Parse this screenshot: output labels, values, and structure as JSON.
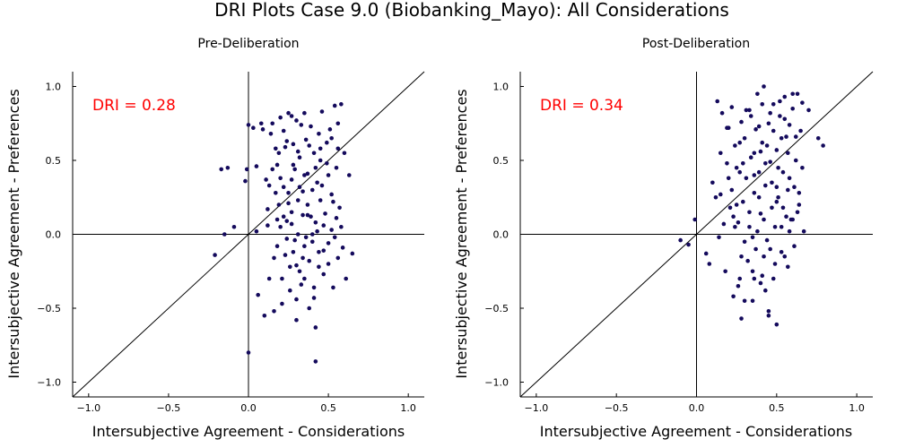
{
  "figure": {
    "title": "DRI Plots Case 9.0 (Biobanking_Mayo): All Considerations"
  },
  "chart_data": [
    {
      "type": "scatter",
      "title": "Pre-Deliberation",
      "xlabel": "Intersubjective Agreement - Considerations",
      "ylabel": "Intersubjective Agreement - Preferences",
      "xlim": [
        -1.1,
        1.1
      ],
      "ylim": [
        -1.1,
        1.1
      ],
      "xticks": [
        "−1.0",
        "−0.5",
        "0.0",
        "0.5",
        "1.0"
      ],
      "yticks": [
        "−1.0",
        "−0.5",
        "0.0",
        "0.5",
        "1.0"
      ],
      "grid": false,
      "annotation": "DRI = 0.28",
      "annotation_color": "#ff0000",
      "marker_color": "#140a5c",
      "reference_lines": [
        "x = 0",
        "y = 0",
        "y = x"
      ],
      "points": [
        [
          -0.21,
          -0.14
        ],
        [
          -0.17,
          0.44
        ],
        [
          -0.15,
          0.0
        ],
        [
          -0.13,
          0.45
        ],
        [
          -0.09,
          0.05
        ],
        [
          -0.02,
          0.36
        ],
        [
          -0.01,
          0.44
        ],
        [
          0.0,
          0.74
        ],
        [
          0.0,
          -0.8
        ],
        [
          0.03,
          0.72
        ],
        [
          0.05,
          0.46
        ],
        [
          0.05,
          0.02
        ],
        [
          0.06,
          -0.41
        ],
        [
          0.08,
          0.75
        ],
        [
          0.09,
          0.71
        ],
        [
          0.1,
          -0.55
        ],
        [
          0.11,
          0.37
        ],
        [
          0.12,
          0.17
        ],
        [
          0.13,
          -0.3
        ],
        [
          0.14,
          0.68
        ],
        [
          0.15,
          0.44
        ],
        [
          0.16,
          -0.52
        ],
        [
          0.17,
          0.28
        ],
        [
          0.18,
          -0.08
        ],
        [
          0.19,
          0.55
        ],
        [
          0.2,
          0.79
        ],
        [
          0.2,
          0.05
        ],
        [
          0.21,
          -0.3
        ],
        [
          0.22,
          0.32
        ],
        [
          0.22,
          0.12
        ],
        [
          0.23,
          0.59
        ],
        [
          0.24,
          -0.03
        ],
        [
          0.25,
          0.82
        ],
        [
          0.25,
          0.21
        ],
        [
          0.26,
          -0.22
        ],
        [
          0.27,
          0.37
        ],
        [
          0.27,
          0.07
        ],
        [
          0.28,
          0.61
        ],
        [
          0.28,
          -0.12
        ],
        [
          0.29,
          0.44
        ],
        [
          0.3,
          0.77
        ],
        [
          0.3,
          -0.58
        ],
        [
          0.31,
          0.23
        ],
        [
          0.31,
          0.0
        ],
        [
          0.32,
          0.52
        ],
        [
          0.33,
          -0.34
        ],
        [
          0.34,
          0.29
        ],
        [
          0.34,
          0.13
        ],
        [
          0.35,
          0.82
        ],
        [
          0.35,
          -0.08
        ],
        [
          0.36,
          0.64
        ],
        [
          0.37,
          0.41
        ],
        [
          0.37,
          0.2
        ],
        [
          0.38,
          -0.18
        ],
        [
          0.39,
          0.73
        ],
        [
          0.4,
          0.3
        ],
        [
          0.4,
          0.0
        ],
        [
          0.41,
          0.55
        ],
        [
          0.41,
          -0.43
        ],
        [
          0.42,
          0.08
        ],
        [
          0.42,
          -0.86
        ],
        [
          0.43,
          0.35
        ],
        [
          0.44,
          0.68
        ],
        [
          0.44,
          -0.12
        ],
        [
          0.45,
          0.5
        ],
        [
          0.45,
          0.23
        ],
        [
          0.46,
          0.83
        ],
        [
          0.47,
          -0.27
        ],
        [
          0.48,
          0.14
        ],
        [
          0.49,
          0.62
        ],
        [
          0.5,
          0.4
        ],
        [
          0.5,
          -0.06
        ],
        [
          0.51,
          0.71
        ],
        [
          0.52,
          0.27
        ],
        [
          0.53,
          -0.36
        ],
        [
          0.54,
          0.87
        ],
        [
          0.55,
          0.45
        ],
        [
          0.55,
          0.11
        ],
        [
          0.56,
          0.75
        ],
        [
          0.57,
          0.18
        ],
        [
          0.58,
          0.88
        ],
        [
          0.59,
          -0.09
        ],
        [
          0.6,
          0.55
        ],
        [
          0.61,
          -0.3
        ],
        [
          0.63,
          0.4
        ],
        [
          0.65,
          -0.13
        ],
        [
          0.15,
          0.75
        ],
        [
          0.22,
          0.7
        ],
        [
          0.27,
          0.8
        ],
        [
          0.33,
          0.74
        ],
        [
          0.12,
          0.06
        ],
        [
          0.18,
          0.1
        ],
        [
          0.24,
          0.09
        ],
        [
          0.29,
          -0.04
        ],
        [
          0.36,
          -0.02
        ],
        [
          0.43,
          0.02
        ],
        [
          0.47,
          0.06
        ],
        [
          0.52,
          0.03
        ],
        [
          0.21,
          -0.47
        ],
        [
          0.3,
          -0.44
        ],
        [
          0.38,
          -0.5
        ],
        [
          0.26,
          -0.38
        ],
        [
          0.35,
          -0.3
        ],
        [
          0.44,
          -0.22
        ],
        [
          0.5,
          -0.2
        ],
        [
          0.56,
          -0.16
        ],
        [
          0.16,
          -0.16
        ],
        [
          0.23,
          -0.14
        ],
        [
          0.32,
          -0.25
        ],
        [
          0.41,
          -0.36
        ],
        [
          0.19,
          0.2
        ],
        [
          0.25,
          0.28
        ],
        [
          0.32,
          0.32
        ],
        [
          0.39,
          0.12
        ],
        [
          0.46,
          0.33
        ],
        [
          0.53,
          0.22
        ],
        [
          0.58,
          0.05
        ],
        [
          0.17,
          0.58
        ],
        [
          0.24,
          0.63
        ],
        [
          0.31,
          0.56
        ],
        [
          0.38,
          0.6
        ],
        [
          0.45,
          0.58
        ],
        [
          0.52,
          0.65
        ],
        [
          0.28,
          0.47
        ],
        [
          0.35,
          0.4
        ],
        [
          0.42,
          0.45
        ],
        [
          0.49,
          0.48
        ],
        [
          0.56,
          0.58
        ],
        [
          0.13,
          0.33
        ],
        [
          0.2,
          0.38
        ],
        [
          0.27,
          0.15
        ],
        [
          0.34,
          -0.16
        ],
        [
          0.4,
          -0.05
        ],
        [
          0.47,
          -0.11
        ],
        [
          0.54,
          -0.02
        ],
        [
          0.18,
          0.47
        ],
        [
          0.42,
          -0.63
        ],
        [
          0.3,
          -0.21
        ],
        [
          0.37,
          0.13
        ]
      ]
    },
    {
      "type": "scatter",
      "title": "Post-Deliberation",
      "xlabel": "Intersubjective Agreement - Considerations",
      "ylabel": "Intersubjective Agreement - Preferences",
      "xlim": [
        -1.1,
        1.1
      ],
      "ylim": [
        -1.1,
        1.1
      ],
      "xticks": [
        "−1.0",
        "−0.5",
        "0.0",
        "0.5",
        "1.0"
      ],
      "yticks": [
        "−1.0",
        "−0.5",
        "0.0",
        "0.5",
        "1.0"
      ],
      "grid": false,
      "annotation": "DRI = 0.34",
      "annotation_color": "#ff0000",
      "marker_color": "#140a5c",
      "reference_lines": [
        "x = 0",
        "y = 0",
        "y = x"
      ],
      "points": [
        [
          -0.1,
          -0.04
        ],
        [
          -0.05,
          -0.07
        ],
        [
          -0.01,
          0.1
        ],
        [
          0.06,
          -0.13
        ],
        [
          0.08,
          -0.2
        ],
        [
          0.1,
          0.35
        ],
        [
          0.12,
          0.25
        ],
        [
          0.13,
          0.9
        ],
        [
          0.14,
          -0.02
        ],
        [
          0.15,
          0.55
        ],
        [
          0.16,
          0.82
        ],
        [
          0.17,
          0.07
        ],
        [
          0.18,
          -0.25
        ],
        [
          0.19,
          0.72
        ],
        [
          0.2,
          0.38
        ],
        [
          0.21,
          0.18
        ],
        [
          0.22,
          0.86
        ],
        [
          0.23,
          -0.42
        ],
        [
          0.24,
          0.6
        ],
        [
          0.25,
          0.45
        ],
        [
          0.26,
          0.08
        ],
        [
          0.27,
          -0.3
        ],
        [
          0.28,
          0.76
        ],
        [
          0.28,
          -0.57
        ],
        [
          0.29,
          0.22
        ],
        [
          0.3,
          0.65
        ],
        [
          0.31,
          0.38
        ],
        [
          0.32,
          -0.18
        ],
        [
          0.33,
          0.84
        ],
        [
          0.33,
          0.05
        ],
        [
          0.34,
          0.52
        ],
        [
          0.35,
          -0.45
        ],
        [
          0.36,
          0.28
        ],
        [
          0.37,
          0.71
        ],
        [
          0.37,
          -0.1
        ],
        [
          0.38,
          0.95
        ],
        [
          0.39,
          0.42
        ],
        [
          0.4,
          0.14
        ],
        [
          0.41,
          0.62
        ],
        [
          0.41,
          -0.28
        ],
        [
          0.42,
          1.0
        ],
        [
          0.43,
          0.33
        ],
        [
          0.44,
          -0.04
        ],
        [
          0.45,
          0.75
        ],
        [
          0.45,
          -0.52
        ],
        [
          0.46,
          0.49
        ],
        [
          0.47,
          0.18
        ],
        [
          0.48,
          0.88
        ],
        [
          0.49,
          -0.2
        ],
        [
          0.5,
          0.57
        ],
        [
          0.5,
          -0.61
        ],
        [
          0.51,
          0.25
        ],
        [
          0.52,
          0.8
        ],
        [
          0.53,
          0.05
        ],
        [
          0.54,
          0.42
        ],
        [
          0.55,
          0.93
        ],
        [
          0.55,
          -0.15
        ],
        [
          0.56,
          0.66
        ],
        [
          0.57,
          0.3
        ],
        [
          0.58,
          0.74
        ],
        [
          0.59,
          0.1
        ],
        [
          0.6,
          0.85
        ],
        [
          0.61,
          -0.08
        ],
        [
          0.62,
          0.5
        ],
        [
          0.63,
          0.95
        ],
        [
          0.64,
          0.2
        ],
        [
          0.65,
          0.7
        ],
        [
          0.66,
          0.89
        ],
        [
          0.67,
          0.02
        ],
        [
          0.7,
          0.84
        ],
        [
          0.76,
          0.65
        ],
        [
          0.79,
          0.6
        ],
        [
          0.2,
          0.72
        ],
        [
          0.27,
          0.62
        ],
        [
          0.34,
          0.8
        ],
        [
          0.41,
          0.88
        ],
        [
          0.48,
          0.7
        ],
        [
          0.55,
          0.78
        ],
        [
          0.62,
          0.66
        ],
        [
          0.23,
          0.12
        ],
        [
          0.3,
          -0.05
        ],
        [
          0.38,
          0.02
        ],
        [
          0.46,
          -0.1
        ],
        [
          0.53,
          -0.12
        ],
        [
          0.6,
          0.1
        ],
        [
          0.26,
          -0.35
        ],
        [
          0.35,
          -0.25
        ],
        [
          0.43,
          -0.38
        ],
        [
          0.3,
          -0.45
        ],
        [
          0.4,
          -0.33
        ],
        [
          0.48,
          -0.3
        ],
        [
          0.57,
          -0.22
        ],
        [
          0.22,
          0.3
        ],
        [
          0.29,
          0.48
        ],
        [
          0.36,
          0.55
        ],
        [
          0.44,
          0.6
        ],
        [
          0.51,
          0.45
        ],
        [
          0.58,
          0.38
        ],
        [
          0.64,
          0.28
        ],
        [
          0.19,
          0.48
        ],
        [
          0.25,
          0.2
        ],
        [
          0.33,
          0.15
        ],
        [
          0.39,
          0.25
        ],
        [
          0.47,
          0.35
        ],
        [
          0.54,
          0.18
        ],
        [
          0.61,
          0.32
        ],
        [
          0.36,
          0.4
        ],
        [
          0.43,
          0.48
        ],
        [
          0.5,
          0.32
        ],
        [
          0.57,
          0.55
        ],
        [
          0.31,
          0.84
        ],
        [
          0.39,
          0.73
        ],
        [
          0.46,
          0.82
        ],
        [
          0.53,
          0.65
        ],
        [
          0.6,
          0.95
        ],
        [
          0.28,
          -0.15
        ],
        [
          0.35,
          -0.02
        ],
        [
          0.42,
          0.1
        ],
        [
          0.49,
          0.05
        ],
        [
          0.56,
          0.12
        ],
        [
          0.63,
          0.15
        ],
        [
          0.24,
          0.05
        ],
        [
          0.45,
          -0.55
        ],
        [
          0.36,
          -0.3
        ],
        [
          0.42,
          -0.15
        ],
        [
          0.5,
          0.22
        ],
        [
          0.58,
          0.02
        ],
        [
          0.66,
          0.45
        ],
        [
          0.15,
          0.27
        ],
        [
          0.27,
          0.42
        ],
        [
          0.52,
          0.9
        ],
        [
          0.4,
          0.56
        ]
      ]
    }
  ]
}
